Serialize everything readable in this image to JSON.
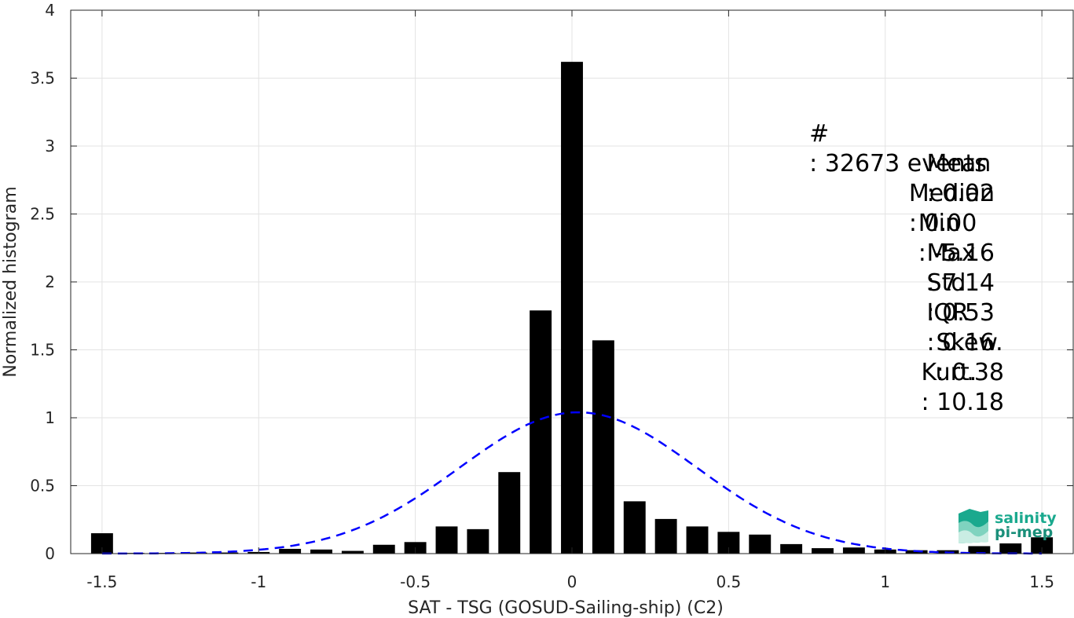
{
  "chart_data": {
    "type": "bar",
    "xlabel": "SAT - TSG (GOSUD-Sailing-ship) (C2)",
    "ylabel": "Normalized histogram",
    "xlim": [
      -1.6,
      1.6
    ],
    "ylim": [
      0,
      4
    ],
    "grid": true,
    "x_ticks": [
      -1.5,
      -1,
      -0.5,
      0,
      0.5,
      1,
      1.5
    ],
    "x_tick_labels": [
      "-1.5",
      "-1",
      "-0.5",
      "0",
      "0.5",
      "1",
      "1.5"
    ],
    "y_ticks": [
      0,
      0.5,
      1,
      1.5,
      2,
      2.5,
      3,
      3.5,
      4
    ],
    "y_tick_labels": [
      "0",
      "0.5",
      "1",
      "1.5",
      "2",
      "2.5",
      "3",
      "3.5",
      "4"
    ],
    "bar_width": 0.07,
    "bar_color": "#000000",
    "bars": {
      "x": [
        -1.5,
        -1.4,
        -1.3,
        -1.2,
        -1.1,
        -1.0,
        -0.9,
        -0.8,
        -0.7,
        -0.6,
        -0.5,
        -0.4,
        -0.3,
        -0.2,
        -0.1,
        0.0,
        0.1,
        0.2,
        0.3,
        0.4,
        0.5,
        0.6,
        0.7,
        0.8,
        0.9,
        1.0,
        1.1,
        1.2,
        1.3,
        1.4,
        1.5
      ],
      "values": [
        0.15,
        0.005,
        0.005,
        0.008,
        0.008,
        0.012,
        0.035,
        0.03,
        0.02,
        0.065,
        0.085,
        0.2,
        0.18,
        0.6,
        1.79,
        3.62,
        1.57,
        0.385,
        0.255,
        0.2,
        0.16,
        0.14,
        0.07,
        0.04,
        0.045,
        0.03,
        0.025,
        0.025,
        0.055,
        0.075,
        0.12
      ]
    },
    "fit_curve": {
      "type": "gaussian",
      "mean": 0.02,
      "std": 0.38,
      "peak": 1.04,
      "color": "#0000ff",
      "style": "dashed"
    },
    "annotations": [
      {
        "label": "#",
        "value": ": 32673 events"
      },
      {
        "label": "Mean",
        "value": ": 0.02"
      },
      {
        "label": "Median",
        "value": ": 0.00"
      },
      {
        "label": "Min",
        "value": ": -5.16"
      },
      {
        "label": "Max",
        "value": ": 7.14"
      },
      {
        "label": "Std",
        "value": ": 0.53"
      },
      {
        "label": "IQR",
        "value": ": 0.16"
      },
      {
        "label": "Skew.",
        "value": ": 0.38"
      },
      {
        "label": "Kurt.",
        "value": ": 10.18"
      }
    ]
  },
  "logo": {
    "line1": "salinity",
    "line2": "pi-mep",
    "icon": "wave-logo-icon",
    "color": "#1aa98e"
  }
}
